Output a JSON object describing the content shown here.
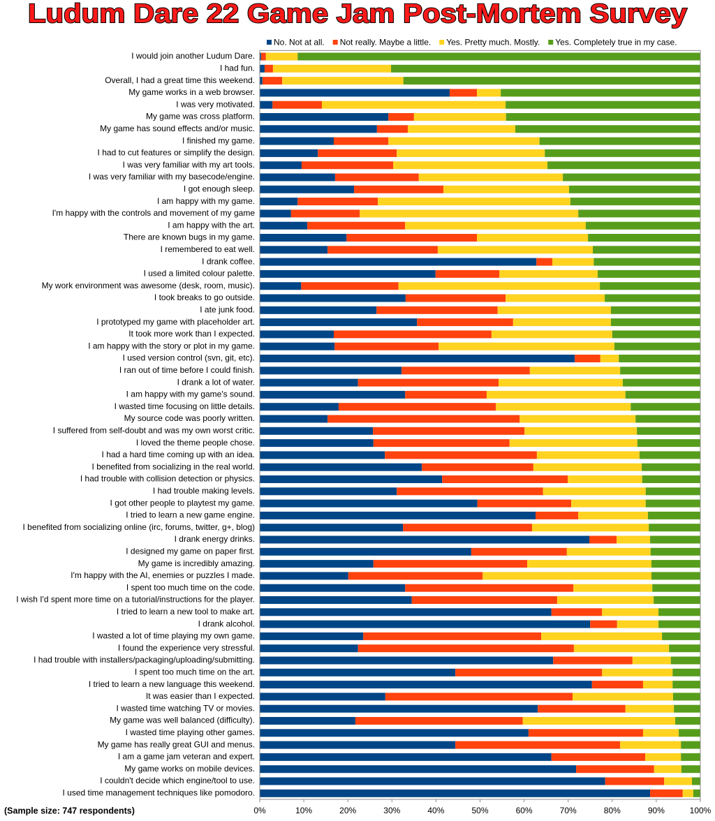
{
  "chart_data": {
    "type": "bar",
    "orientation": "horizontal",
    "stacked": true,
    "title": "Ludum Dare 22 Game Jam Post-Mortem Survey",
    "footnote": "(Sample size: 747 respondents)",
    "legend": "top",
    "grid": false,
    "xlim": [
      0,
      100
    ],
    "xticks": [
      {
        "value": 0,
        "label": "0%"
      },
      {
        "value": 10,
        "label": "10%"
      },
      {
        "value": 20,
        "label": "20%"
      },
      {
        "value": 30,
        "label": "30%"
      },
      {
        "value": 40,
        "label": "40%"
      },
      {
        "value": 50,
        "label": "50%"
      },
      {
        "value": 60,
        "label": "60%"
      },
      {
        "value": 70,
        "label": "70%"
      },
      {
        "value": 80,
        "label": "80%"
      },
      {
        "value": 90,
        "label": "90%"
      },
      {
        "value": 100,
        "label": "100%"
      }
    ],
    "categories": [
      "I would join another Ludum Dare.",
      "I had fun.",
      "Overall, I had a great time this weekend.",
      "My game works in a web browser.",
      "I was very motivated.",
      "My game was cross platform.",
      "My game has sound effects and/or music.",
      "I finished my game.",
      "I had to cut features or simplify the design.",
      "I was very familiar with my art tools.",
      "I was very familiar with my basecode/engine.",
      "I got enough sleep.",
      "I am happy with my game.",
      "I'm happy with the controls and movement of my game",
      "I am happy with the art.",
      "There are known bugs in my game.",
      "I remembered to eat well.",
      "I drank coffee.",
      "I used a limited colour palette.",
      "My work environment was awesome (desk, room, music).",
      "I took breaks to go outside.",
      "I ate junk food.",
      "I prototyped my game with placeholder art.",
      "It took more work than I expected.",
      "I am happy with the story or plot in my game.",
      "I used version control (svn, git, etc).",
      "I ran out of time before I could finish.",
      "I drank a lot of water.",
      "I am happy with my game's sound.",
      "I wasted time focusing on little details.",
      "My source code was poorly written.",
      "I suffered from self-doubt and was my own worst critic.",
      "I loved the theme people chose.",
      "I had a hard time coming up with an idea.",
      "I benefited from socializing in the real world.",
      "I had trouble with collision detection or physics.",
      "I had trouble making levels.",
      "I got other people to playtest my game.",
      "I tried to learn a new game engine.",
      "I benefited from socializing online (irc, forums, twitter, g+, blog)",
      "I drank energy drinks.",
      "I designed my game on paper first.",
      "My game is incredibly amazing.",
      "I'm happy with the AI, enemies or puzzles I made.",
      "I spent too much time on the code.",
      "I wish I'd spent more time on a tutorial/instructions for the player.",
      "I tried to learn a new tool to make art.",
      "I drank alcohol.",
      "I wasted a lot of time playing my own game.",
      "I found the experience very stressful.",
      "I had trouble with installers/packaging/uploading/submitting.",
      "I spent too much time on the art.",
      "I tried to learn a new language this weekend.",
      "It was easier than I expected.",
      "I wasted time watching TV or movies.",
      "My game was well balanced (difficulty).",
      "I wasted time playing other games.",
      "My game has really great GUI and menus.",
      "I am a game jam veteran and expert.",
      "My game works on mobile devices.",
      "I couldn't decide which engine/tool to use.",
      "I used time management techniques like pomodoro."
    ],
    "series": [
      {
        "name": "No. Not at all.",
        "color": "#004586",
        "values": [
          0.3,
          1.1,
          0.6,
          43.1,
          2.9,
          29.2,
          26.6,
          16.8,
          13.2,
          9.5,
          17.1,
          21.4,
          8.6,
          7.1,
          10.8,
          19.7,
          15.4,
          62.8,
          39.9,
          9.4,
          33.1,
          26.5,
          35.7,
          16.8,
          17.0,
          71.5,
          32.2,
          22.3,
          33.0,
          17.9,
          15.4,
          25.7,
          25.8,
          28.4,
          36.8,
          41.4,
          31.1,
          49.4,
          62.6,
          32.5,
          74.8,
          48.0,
          25.8,
          20.1,
          33.0,
          34.5,
          66.2,
          75.0,
          23.5,
          22.3,
          66.6,
          44.4,
          75.4,
          28.5,
          63.1,
          21.7,
          61.0,
          44.4,
          66.2,
          71.8,
          78.4,
          88.6
        ]
      },
      {
        "name": "Not really. Maybe a little.",
        "color": "#ff420e",
        "values": [
          1.1,
          1.9,
          4.5,
          6.2,
          11.2,
          5.8,
          7.0,
          12.4,
          17.9,
          20.8,
          19.0,
          20.3,
          18.2,
          15.6,
          22.2,
          29.6,
          25.0,
          3.6,
          14.5,
          22.1,
          22.7,
          27.5,
          21.8,
          35.8,
          23.6,
          5.8,
          29.1,
          31.9,
          18.5,
          35.7,
          43.6,
          34.4,
          30.9,
          34.5,
          25.3,
          28.5,
          33.2,
          21.3,
          9.7,
          29.3,
          6.2,
          21.7,
          34.9,
          30.5,
          38.2,
          33.0,
          11.5,
          6.1,
          40.4,
          49.0,
          18.0,
          33.3,
          11.6,
          42.5,
          19.9,
          38.0,
          26.0,
          37.4,
          21.3,
          17.7,
          13.4,
          7.4
        ]
      },
      {
        "name": "Yes. Pretty much. Mostly.",
        "color": "#ffd320",
        "values": [
          7.2,
          26.8,
          27.5,
          5.4,
          41.7,
          20.9,
          24.4,
          34.3,
          33.6,
          35.0,
          32.7,
          28.5,
          43.7,
          49.6,
          41.0,
          25.2,
          35.2,
          9.4,
          22.3,
          45.7,
          22.5,
          25.7,
          22.2,
          27.4,
          39.9,
          4.2,
          20.5,
          28.2,
          31.5,
          30.6,
          26.3,
          25.5,
          29.0,
          23.3,
          24.6,
          16.9,
          23.3,
          16.9,
          15.8,
          26.5,
          7.6,
          19.0,
          28.2,
          38.3,
          17.9,
          21.9,
          12.8,
          9.4,
          27.4,
          21.6,
          8.7,
          16.0,
          6.7,
          22.8,
          11.0,
          34.6,
          8.1,
          13.8,
          8.1,
          6.2,
          6.3,
          2.4
        ]
      },
      {
        "name": "Yes. Completely true in my case.",
        "color": "#579d1c",
        "values": [
          91.4,
          70.2,
          67.4,
          45.3,
          44.2,
          44.1,
          42.0,
          36.5,
          35.3,
          34.7,
          31.2,
          29.8,
          29.5,
          27.7,
          26.0,
          25.5,
          24.4,
          24.2,
          23.3,
          22.8,
          21.7,
          20.3,
          20.3,
          20.0,
          19.5,
          18.5,
          18.2,
          17.6,
          17.0,
          15.8,
          14.7,
          14.4,
          14.3,
          13.8,
          13.3,
          13.2,
          12.4,
          12.4,
          11.9,
          11.7,
          11.4,
          11.3,
          11.1,
          11.1,
          10.9,
          10.6,
          9.5,
          9.5,
          8.7,
          7.1,
          6.7,
          6.3,
          6.3,
          6.2,
          6.0,
          5.7,
          4.9,
          4.4,
          4.4,
          4.3,
          1.9,
          1.6
        ]
      }
    ]
  }
}
